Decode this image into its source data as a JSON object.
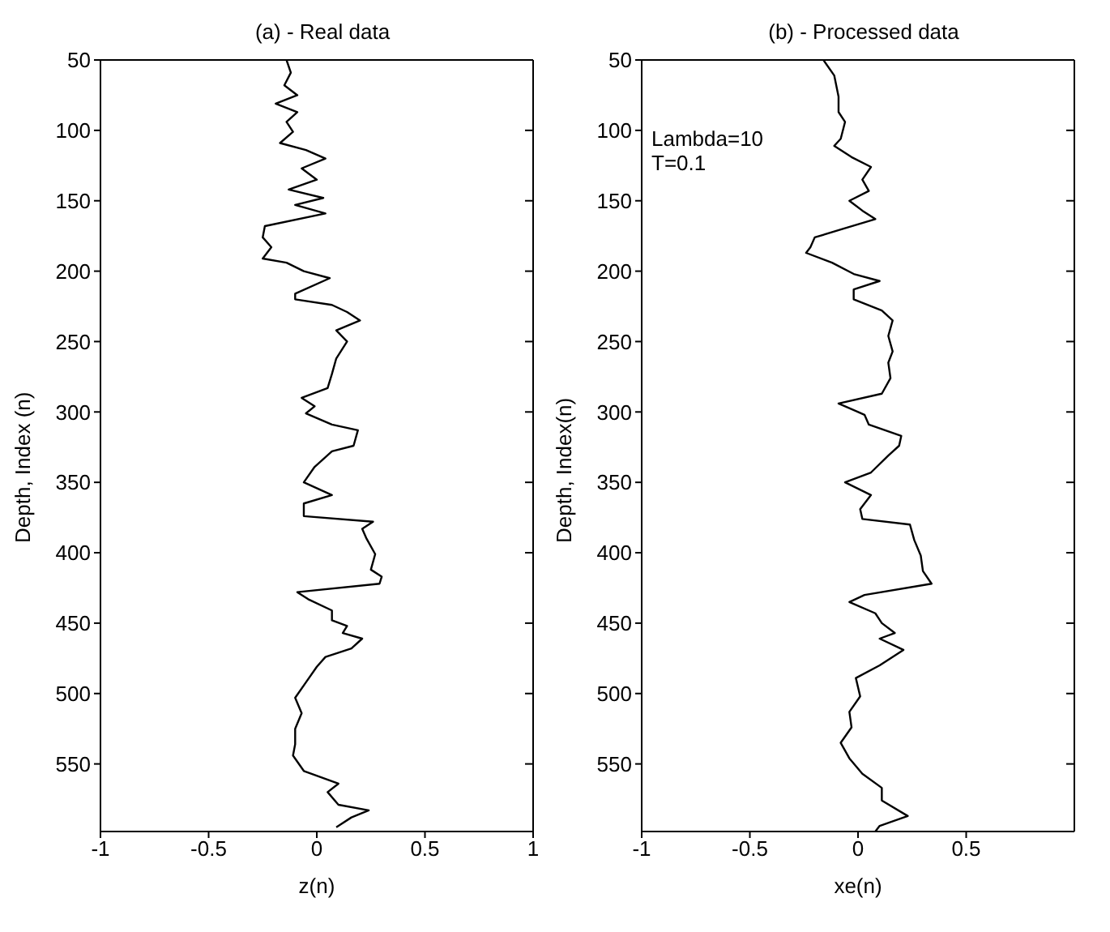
{
  "chart_data": [
    {
      "type": "line",
      "title": "(a) - Real data",
      "xlabel": "z(n)",
      "ylabel": "Depth, Index (n)",
      "orientation": "horizontal",
      "xlim": [
        -1,
        1
      ],
      "xticks": [
        -1,
        -0.5,
        0,
        0.5,
        1
      ],
      "ylim": [
        598,
        50
      ],
      "yticks": [
        50,
        100,
        150,
        200,
        250,
        300,
        350,
        400,
        450,
        500,
        550
      ],
      "series": [
        {
          "color": "#000000",
          "x": [
            50,
            59,
            68,
            75,
            81,
            87,
            94,
            101,
            109,
            114,
            120,
            127,
            135,
            142,
            148,
            153,
            159,
            168,
            176,
            183,
            191,
            194,
            200,
            205,
            216,
            220,
            224,
            229,
            235,
            242,
            250,
            262,
            273,
            283,
            290,
            296,
            301,
            309,
            313,
            324,
            328,
            339,
            350,
            359,
            365,
            374,
            378,
            383,
            390,
            401,
            412,
            417,
            422,
            428,
            433,
            441,
            448,
            452,
            457,
            461,
            468,
            474,
            481,
            492,
            503,
            514,
            525,
            536,
            544,
            555,
            564,
            570,
            579,
            583,
            588,
            595
          ],
          "values": [
            -0.14,
            -0.12,
            -0.15,
            -0.09,
            -0.19,
            -0.09,
            -0.14,
            -0.11,
            -0.17,
            -0.05,
            0.04,
            -0.07,
            0.0,
            -0.13,
            0.03,
            -0.1,
            0.04,
            -0.24,
            -0.25,
            -0.21,
            -0.25,
            -0.14,
            -0.06,
            0.06,
            -0.1,
            -0.1,
            0.07,
            0.14,
            0.2,
            0.09,
            0.14,
            0.09,
            0.07,
            0.05,
            -0.07,
            -0.01,
            -0.05,
            0.07,
            0.19,
            0.17,
            0.07,
            -0.01,
            -0.06,
            0.07,
            -0.06,
            -0.06,
            0.26,
            0.21,
            0.23,
            0.27,
            0.25,
            0.3,
            0.29,
            -0.09,
            -0.04,
            0.07,
            0.07,
            0.14,
            0.12,
            0.21,
            0.16,
            0.04,
            0.0,
            -0.05,
            -0.1,
            -0.07,
            -0.1,
            -0.1,
            -0.11,
            -0.06,
            0.1,
            0.05,
            0.1,
            0.24,
            0.16,
            0.09
          ]
        }
      ]
    },
    {
      "type": "line",
      "title": "(b) - Processed data",
      "xlabel": "xe(n)",
      "ylabel": "Depth, Index(n)",
      "annotations": [
        "Lambda=10",
        "T=0.1"
      ],
      "orientation": "horizontal",
      "xlim": [
        -1,
        1
      ],
      "xticks": [
        -1,
        -0.5,
        0,
        0.5
      ],
      "ylim": [
        598,
        50
      ],
      "yticks": [
        50,
        100,
        150,
        200,
        250,
        300,
        350,
        400,
        450,
        500,
        550
      ],
      "series": [
        {
          "color": "#000000",
          "x": [
            50,
            61,
            76,
            87,
            94,
            106,
            111,
            119,
            126,
            135,
            143,
            150,
            157,
            163,
            170,
            176,
            183,
            187,
            194,
            202,
            207,
            213,
            220,
            228,
            235,
            246,
            257,
            265,
            276,
            287,
            294,
            302,
            309,
            317,
            324,
            331,
            343,
            350,
            359,
            369,
            376,
            380,
            391,
            402,
            413,
            422,
            430,
            435,
            443,
            450,
            457,
            461,
            469,
            480,
            489,
            502,
            513,
            524,
            535,
            546,
            557,
            567,
            576,
            587,
            594,
            598
          ],
          "values": [
            -0.16,
            -0.11,
            -0.09,
            -0.09,
            -0.06,
            -0.08,
            -0.11,
            -0.03,
            0.06,
            0.02,
            0.05,
            -0.04,
            0.02,
            0.08,
            -0.07,
            -0.2,
            -0.22,
            -0.24,
            -0.12,
            -0.02,
            0.1,
            -0.02,
            -0.02,
            0.11,
            0.16,
            0.14,
            0.16,
            0.14,
            0.15,
            0.11,
            -0.09,
            0.03,
            0.05,
            0.2,
            0.19,
            0.14,
            0.06,
            -0.06,
            0.06,
            0.01,
            0.02,
            0.24,
            0.26,
            0.29,
            0.3,
            0.34,
            0.03,
            -0.04,
            0.08,
            0.11,
            0.17,
            0.1,
            0.21,
            0.1,
            -0.01,
            0.01,
            -0.04,
            -0.03,
            -0.08,
            -0.04,
            0.02,
            0.11,
            0.11,
            0.23,
            0.1,
            0.08
          ]
        }
      ]
    }
  ]
}
